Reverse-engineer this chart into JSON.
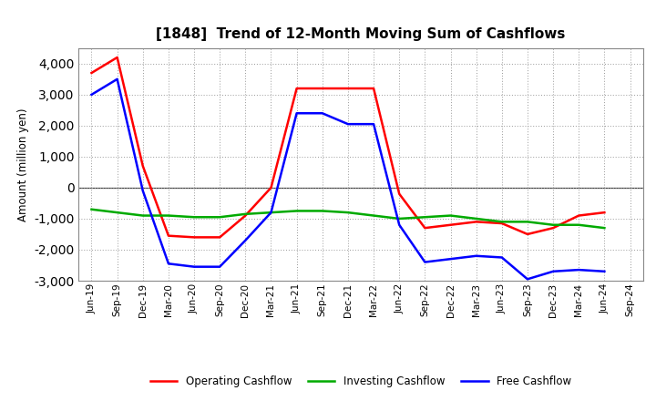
{
  "title": "[1848]  Trend of 12-Month Moving Sum of Cashflows",
  "ylabel": "Amount (million yen)",
  "x_labels": [
    "Jun-19",
    "Sep-19",
    "Dec-19",
    "Mar-20",
    "Jun-20",
    "Sep-20",
    "Dec-20",
    "Mar-21",
    "Jun-21",
    "Sep-21",
    "Dec-21",
    "Mar-22",
    "Jun-22",
    "Sep-22",
    "Dec-22",
    "Mar-23",
    "Jun-23",
    "Sep-23",
    "Dec-23",
    "Mar-24",
    "Jun-24",
    "Sep-24"
  ],
  "operating": [
    3700,
    4200,
    700,
    -1550,
    -1600,
    -1600,
    -900,
    0,
    3200,
    3200,
    3200,
    3200,
    -200,
    -1300,
    -1200,
    -1100,
    -1150,
    -1500,
    -1300,
    -900,
    -800,
    null
  ],
  "investing": [
    -700,
    -800,
    -900,
    -900,
    -950,
    -950,
    -850,
    -800,
    -750,
    -750,
    -800,
    -900,
    -1000,
    -950,
    -900,
    -1000,
    -1100,
    -1100,
    -1200,
    -1200,
    -1300,
    null
  ],
  "free": [
    3000,
    3500,
    -100,
    -2450,
    -2550,
    -2550,
    -1700,
    -800,
    2400,
    2400,
    2050,
    2050,
    -1200,
    -2400,
    -2300,
    -2200,
    -2250,
    -2950,
    -2700,
    -2650,
    -2700,
    null
  ],
  "line_colors": {
    "operating": "#ff0000",
    "investing": "#00aa00",
    "free": "#0000ff"
  },
  "line_width": 1.8,
  "ylim": [
    -3000,
    4500
  ],
  "yticks": [
    -3000,
    -2000,
    -1000,
    0,
    1000,
    2000,
    3000,
    4000
  ],
  "background_color": "#ffffff",
  "grid_color": "#999999",
  "legend_labels": [
    "Operating Cashflow",
    "Investing Cashflow",
    "Free Cashflow"
  ]
}
